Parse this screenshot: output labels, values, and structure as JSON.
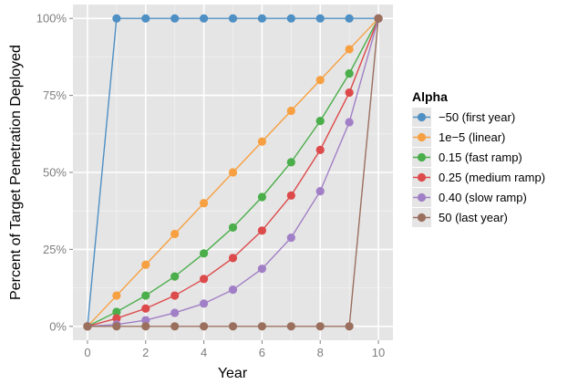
{
  "chart_data": {
    "type": "line",
    "xlabel": "Year",
    "ylabel": "Percent of Target Penetration Deployed",
    "xlim": [
      -0.5,
      10.5
    ],
    "ylim": [
      -4.5,
      104.5
    ],
    "x_ticks": [
      0,
      2,
      4,
      6,
      8,
      10
    ],
    "x_tick_labels": [
      "0",
      "2",
      "4",
      "6",
      "8",
      "10"
    ],
    "y_ticks": [
      0,
      25,
      50,
      75,
      100
    ],
    "y_tick_labels": [
      "0%",
      "25%",
      "50%",
      "75%",
      "100%"
    ],
    "grid": true,
    "legend_placement": "right",
    "legend_title": "Alpha",
    "x": [
      0,
      1,
      2,
      3,
      4,
      5,
      6,
      7,
      8,
      9,
      10
    ],
    "series": [
      {
        "name": "−50 (first year)",
        "color": "#4e8fc4",
        "values": [
          0,
          100,
          100,
          100,
          100,
          100,
          100,
          100,
          100,
          100,
          100
        ]
      },
      {
        "name": "1e−5 (linear)",
        "color": "#f7a042",
        "values": [
          0,
          10,
          20,
          30,
          40,
          50,
          60,
          70,
          80,
          90,
          100
        ]
      },
      {
        "name": "0.15 (fast ramp)",
        "color": "#4aae4a",
        "values": [
          0,
          4.7,
          10.0,
          16.2,
          23.7,
          32.1,
          42.0,
          53.3,
          66.7,
          82.1,
          100
        ]
      },
      {
        "name": "0.25 (medium ramp)",
        "color": "#dd4a4b",
        "values": [
          0,
          2.6,
          5.8,
          10.0,
          15.4,
          22.2,
          31.1,
          42.5,
          57.3,
          75.9,
          100
        ]
      },
      {
        "name": "0.40 (slow ramp)",
        "color": "#a17fc6",
        "values": [
          0,
          0.6,
          2.0,
          4.4,
          7.4,
          11.9,
          18.7,
          28.8,
          43.9,
          66.3,
          100
        ]
      },
      {
        "name": "50 (last year)",
        "color": "#9a6f5e",
        "values": [
          0,
          0,
          0,
          0,
          0,
          0,
          0,
          0,
          0,
          0,
          100
        ]
      }
    ]
  }
}
